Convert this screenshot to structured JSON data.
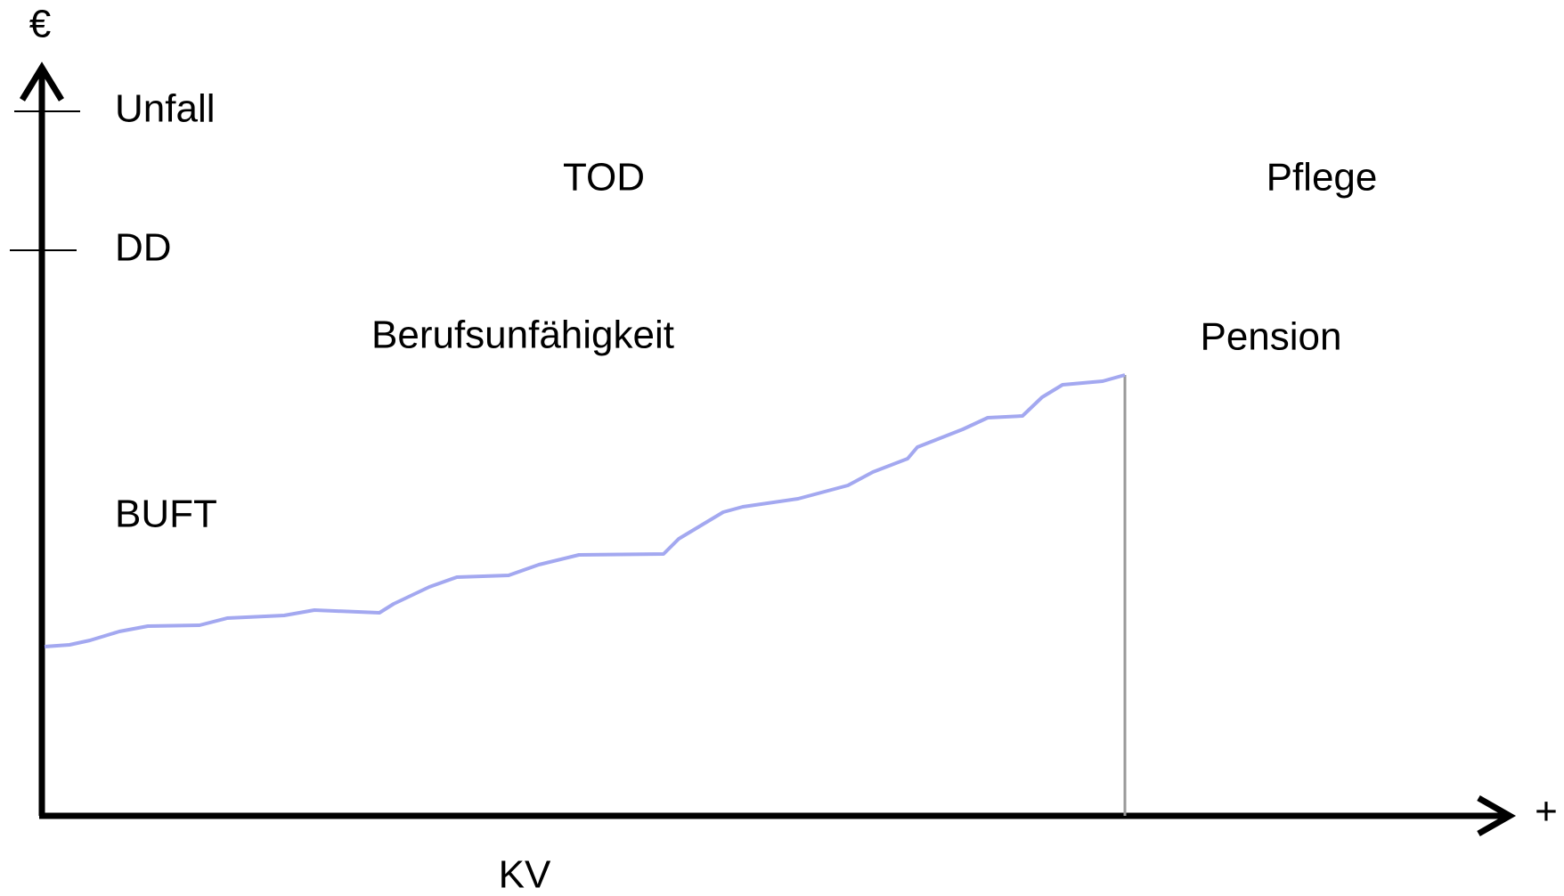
{
  "axes": {
    "y_label": "€",
    "x_label": "+"
  },
  "labels": {
    "unfall": "Unfall",
    "dd": "DD",
    "tod": "TOD",
    "pflege": "Pflege",
    "berufsunfaehigkeit": "Berufsunfähigkeit",
    "pension": "Pension",
    "buft": "BUFT",
    "kv": "KV"
  }
}
